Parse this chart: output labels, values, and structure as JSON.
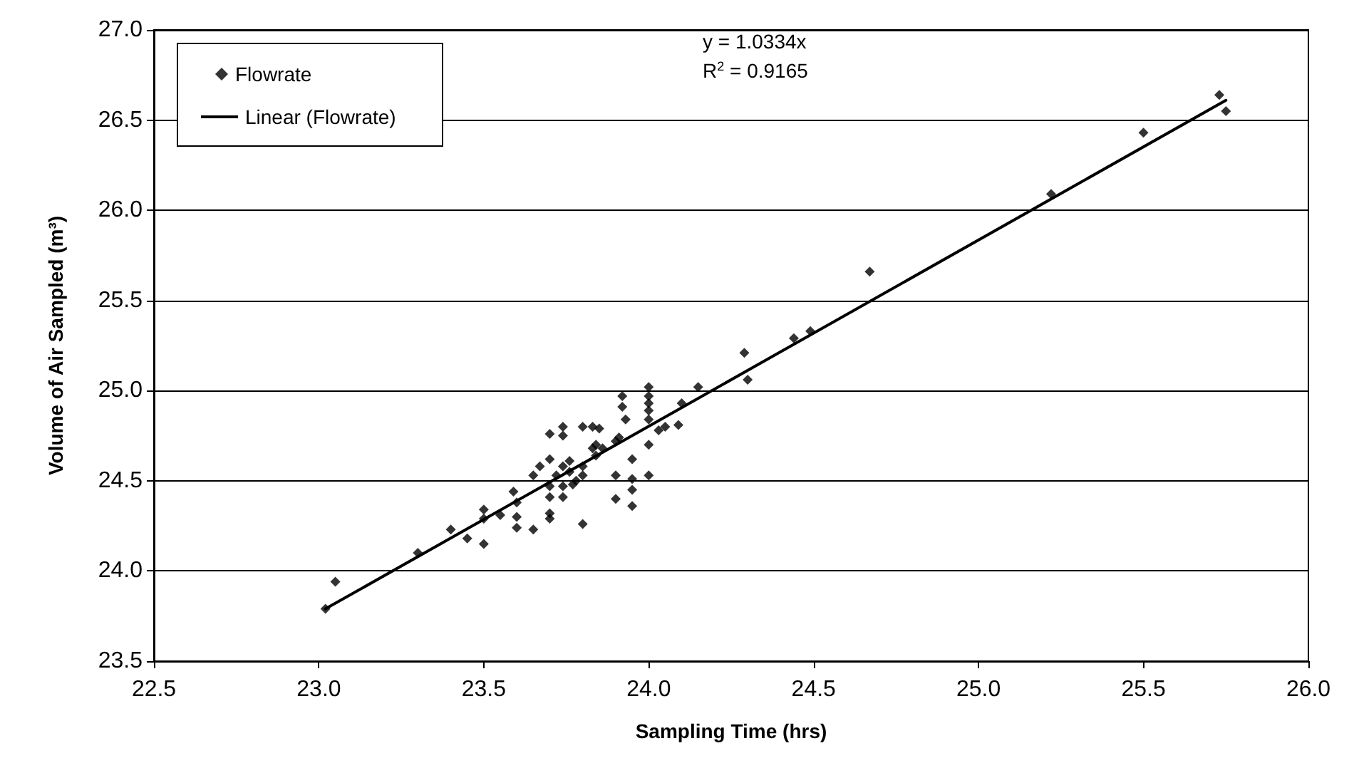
{
  "chart_data": {
    "type": "scatter",
    "xlabel": "Sampling Time (hrs)",
    "ylabel": "Volume of Air Sampled (m³)",
    "xlim": [
      22.5,
      26.0
    ],
    "xticks": [
      {
        "value": 22.5,
        "label": "22.5"
      },
      {
        "value": 23,
        "label": "23.0"
      },
      {
        "value": 23.5,
        "label": "23.5"
      },
      {
        "value": 24,
        "label": "24.0"
      },
      {
        "value": 24.5,
        "label": "24.5"
      },
      {
        "value": 25,
        "label": "25.0"
      },
      {
        "value": 25.5,
        "label": "25.5"
      },
      {
        "value": 26,
        "label": "26.0"
      }
    ],
    "ylim": [
      23.5,
      27.0
    ],
    "yticks": [
      {
        "value": 23.5,
        "label": "23.5"
      },
      {
        "value": 24,
        "label": "24.0"
      },
      {
        "value": 24.5,
        "label": "24.5"
      },
      {
        "value": 25,
        "label": "25.0"
      },
      {
        "value": 25.5,
        "label": "25.5"
      },
      {
        "value": 26,
        "label": "26.0"
      },
      {
        "value": 26.5,
        "label": "26.5"
      },
      {
        "value": 27,
        "label": "27.0"
      }
    ],
    "grid": "y",
    "legend": "top left",
    "marker": "diamond",
    "annotations": [
      "y = 1.0334x",
      "R$^{2}$ = 0.9165"
    ],
    "series": [
      {
        "name": "Flowrate",
        "color": "#000000",
        "type": "scatter",
        "x": [
          23.02,
          23.05,
          23.3,
          23.4,
          23.45,
          23.5,
          23.5,
          23.5,
          23.55,
          23.59,
          23.6,
          23.6,
          23.6,
          23.65,
          23.65,
          23.67,
          23.7,
          23.7,
          23.7,
          23.7,
          23.7,
          23.7,
          23.72,
          23.74,
          23.74,
          23.74,
          23.74,
          23.74,
          23.76,
          23.77,
          23.78,
          23.8,
          23.8,
          23.8,
          23.83,
          23.83,
          23.85,
          23.84,
          23.86,
          23.9,
          23.9,
          23.9,
          23.92,
          23.92,
          23.93,
          23.91,
          23.95,
          23.95,
          23.95,
          23.95,
          24.0,
          24.0,
          24.0,
          24.0,
          24.0,
          24.0,
          24.0,
          24.03,
          24.05,
          24.09,
          24.1,
          24.15,
          23.8,
          23.84,
          23.76,
          24.29,
          24.3,
          24.44,
          24.49,
          24.67,
          25.22,
          25.5,
          25.73,
          25.75
        ],
        "values": [
          23.79,
          23.94,
          24.1,
          24.23,
          24.18,
          24.15,
          24.34,
          24.29,
          24.31,
          24.44,
          24.38,
          24.3,
          24.24,
          24.23,
          24.53,
          24.58,
          24.76,
          24.47,
          24.41,
          24.32,
          24.29,
          24.62,
          24.53,
          24.8,
          24.75,
          24.58,
          24.47,
          24.41,
          24.55,
          24.48,
          24.5,
          24.58,
          24.26,
          24.8,
          24.8,
          24.68,
          24.79,
          24.7,
          24.68,
          24.72,
          24.53,
          24.4,
          24.97,
          24.91,
          24.84,
          24.74,
          24.62,
          24.51,
          24.45,
          24.36,
          25.02,
          24.97,
          24.93,
          24.89,
          24.84,
          24.7,
          24.53,
          24.78,
          24.8,
          24.81,
          24.93,
          25.02,
          24.53,
          24.64,
          24.61,
          25.21,
          25.06,
          25.29,
          25.33,
          25.66,
          26.09,
          26.43,
          26.64,
          26.55
        ]
      },
      {
        "name": "Linear (Flowrate)",
        "color": "#000000",
        "type": "line",
        "marker": "none",
        "x": [
          23.02,
          25.75
        ],
        "values": [
          23.79,
          26.61
        ]
      }
    ]
  }
}
